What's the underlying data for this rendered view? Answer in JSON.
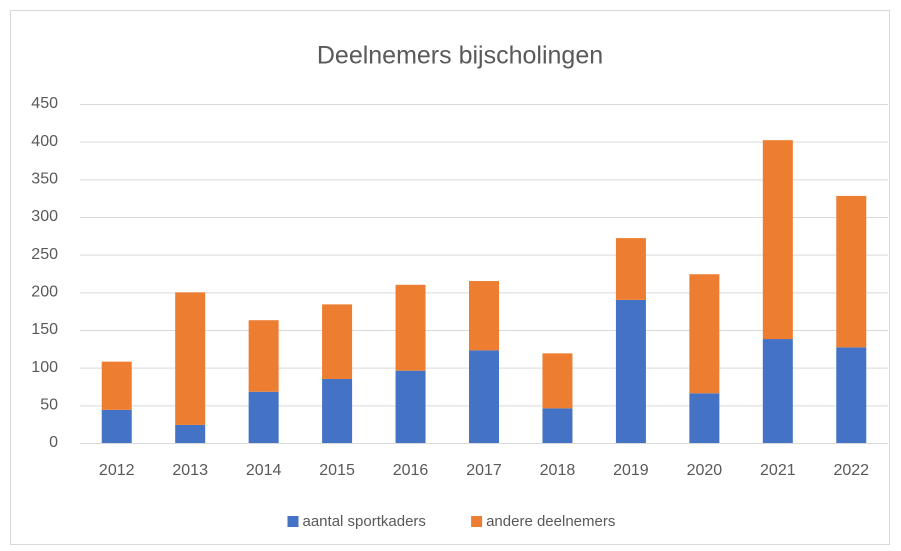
{
  "chart_data": {
    "type": "stacked_bar",
    "title": "Deelnemers bijscholingen",
    "categories": [
      "2012",
      "2013",
      "2014",
      "2015",
      "2016",
      "2017",
      "2018",
      "2019",
      "2020",
      "2021",
      "2022"
    ],
    "series": [
      {
        "name": "aantal sportkaders",
        "color": "#4472c4",
        "values": [
          44,
          24,
          68,
          85,
          96,
          123,
          46,
          190,
          66,
          138,
          127
        ]
      },
      {
        "name": "andere deelnemers",
        "color": "#ed7d31",
        "values": [
          64,
          176,
          95,
          99,
          114,
          92,
          73,
          82,
          158,
          264,
          201
        ]
      }
    ],
    "ylim": [
      0,
      450
    ],
    "yticks": [
      0,
      50,
      100,
      150,
      200,
      250,
      300,
      350,
      400,
      450
    ],
    "grid": true,
    "legend": "bottom"
  }
}
